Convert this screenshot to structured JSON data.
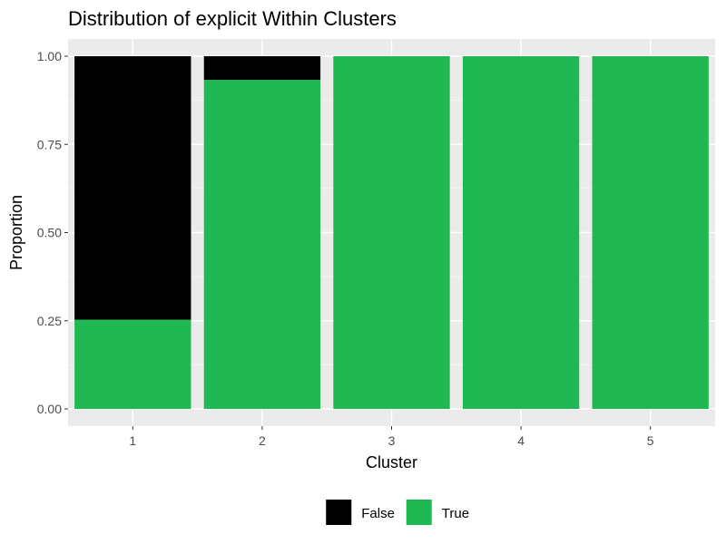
{
  "chart_data": {
    "type": "bar",
    "stacked": true,
    "title": "Distribution of explicit Within Clusters",
    "xlabel": "Cluster",
    "ylabel": "Proportion",
    "categories": [
      "1",
      "2",
      "3",
      "4",
      "5"
    ],
    "ylim": [
      0,
      1
    ],
    "yticks": [
      "0.00",
      "0.25",
      "0.50",
      "0.75",
      "1.00"
    ],
    "grid": true,
    "legend_position": "bottom",
    "series": [
      {
        "name": "True",
        "color": "#1fb853",
        "values": [
          0.253,
          0.933,
          1.0,
          1.0,
          1.0
        ]
      },
      {
        "name": "False",
        "color": "#000000",
        "values": [
          0.747,
          0.067,
          0.0,
          0.0,
          0.0
        ]
      }
    ],
    "legend": [
      {
        "name": "False",
        "color": "#000000"
      },
      {
        "name": "True",
        "color": "#1fb853"
      }
    ],
    "panel_background": "#ebebeb"
  }
}
